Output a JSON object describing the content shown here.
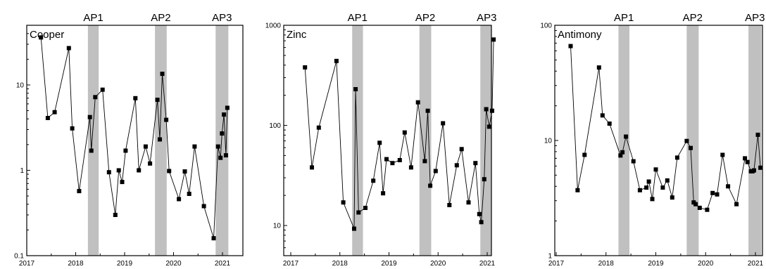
{
  "figure": {
    "colors": {
      "line": "#000000",
      "marker": "#000000",
      "band": "#c0c0c0",
      "axis": "#000000"
    },
    "x_ticks": [
      "2017",
      "2018",
      "2019",
      "2020",
      "2021"
    ]
  },
  "chart_data": [
    {
      "type": "line",
      "title": "Cooper",
      "yscale": "log",
      "ylim": [
        0.1,
        50
      ],
      "xlim": [
        2017.0,
        2021.45
      ],
      "y_ticks": [
        "0.1",
        "1",
        "10"
      ],
      "x_ticks": [
        "2017",
        "2018",
        "2019",
        "2020",
        "2021"
      ],
      "annotations": [
        {
          "label": "AP1",
          "start": 2018.25,
          "end": 2018.47
        },
        {
          "label": "AP2",
          "start": 2019.62,
          "end": 2019.86
        },
        {
          "label": "AP3",
          "start": 2020.86,
          "end": 2021.12
        }
      ],
      "series": [
        {
          "x": [
            2017.29,
            2017.43,
            2017.57,
            2017.86,
            2017.93,
            2018.07,
            2018.29,
            2018.32,
            2018.4,
            2018.55,
            2018.68,
            2018.81,
            2018.88,
            2018.95,
            2019.02,
            2019.22,
            2019.29,
            2019.43,
            2019.52,
            2019.67,
            2019.72,
            2019.77,
            2019.85,
            2019.91,
            2020.11,
            2020.23,
            2020.32,
            2020.43,
            2020.62,
            2020.82,
            2020.91,
            2020.96,
            2020.99,
            2021.03,
            2021.07,
            2021.1
          ],
          "y": [
            36,
            4.1,
            4.8,
            27,
            3.1,
            0.57,
            4.2,
            1.7,
            7.2,
            8.8,
            0.95,
            0.3,
            1.0,
            0.73,
            1.7,
            7.0,
            1.0,
            1.9,
            1.2,
            6.7,
            2.3,
            13.5,
            3.9,
            0.98,
            0.46,
            0.97,
            0.53,
            1.9,
            0.38,
            0.16,
            1.9,
            1.4,
            2.7,
            4.5,
            1.5,
            5.4
          ]
        }
      ]
    },
    {
      "type": "line",
      "title": "Zinc",
      "yscale": "log",
      "ylim": [
        5,
        1000
      ],
      "xlim": [
        2017.0,
        2021.45
      ],
      "y_ticks": [
        "10",
        "100",
        "1000"
      ],
      "x_ticks": [
        "2017",
        "2018",
        "2019",
        "2020",
        "2021"
      ],
      "annotations": [
        {
          "label": "AP1",
          "start": 2018.25,
          "end": 2018.47
        },
        {
          "label": "AP2",
          "start": 2019.62,
          "end": 2019.86
        },
        {
          "label": "AP3",
          "start": 2020.86,
          "end": 2021.12
        }
      ],
      "series": [
        {
          "x": [
            2017.29,
            2017.43,
            2017.57,
            2017.93,
            2018.07,
            2018.29,
            2018.32,
            2018.38,
            2018.52,
            2018.68,
            2018.81,
            2018.88,
            2018.95,
            2019.07,
            2019.22,
            2019.32,
            2019.45,
            2019.59,
            2019.73,
            2019.79,
            2019.84,
            2019.95,
            2020.1,
            2020.23,
            2020.38,
            2020.48,
            2020.62,
            2020.76,
            2020.84,
            2020.88,
            2020.94,
            2020.98,
            2021.04,
            2021.1,
            2021.13
          ],
          "y": [
            380,
            38,
            95,
            440,
            17,
            9.3,
            230,
            13.5,
            15,
            28,
            67,
            21,
            46,
            42,
            45,
            85,
            38,
            170,
            44,
            140,
            25,
            35,
            105,
            16,
            40,
            58,
            17,
            42,
            13,
            10.8,
            29,
            145,
            97,
            140,
            720
          ]
        }
      ]
    },
    {
      "type": "line",
      "title": "Antimony",
      "yscale": "log",
      "ylim": [
        1,
        100
      ],
      "xlim": [
        2017.0,
        2021.3
      ],
      "y_ticks": [
        "1",
        "10",
        "100"
      ],
      "x_ticks": [
        "2017",
        "2018",
        "2019",
        "2020",
        "2021"
      ],
      "annotations": [
        {
          "label": "AP1",
          "start": 2018.25,
          "end": 2018.47
        },
        {
          "label": "AP2",
          "start": 2019.62,
          "end": 2019.86
        },
        {
          "label": "AP3",
          "start": 2020.86,
          "end": 2021.12
        }
      ],
      "series": [
        {
          "x": [
            2017.29,
            2017.43,
            2017.57,
            2017.86,
            2017.93,
            2018.07,
            2018.29,
            2018.33,
            2018.4,
            2018.55,
            2018.68,
            2018.81,
            2018.86,
            2018.93,
            2019.0,
            2019.14,
            2019.23,
            2019.33,
            2019.43,
            2019.62,
            2019.7,
            2019.76,
            2019.8,
            2019.88,
            2020.03,
            2020.14,
            2020.23,
            2020.34,
            2020.45,
            2020.62,
            2020.79,
            2020.84,
            2020.91,
            2020.94,
            2020.97,
            2021.05,
            2021.1
          ],
          "y": [
            66,
            3.7,
            7.5,
            43,
            16.5,
            14,
            7.4,
            7.9,
            10.8,
            6.6,
            3.7,
            3.9,
            4.4,
            3.1,
            5.6,
            3.9,
            4.5,
            3.2,
            7.1,
            9.9,
            8.6,
            2.9,
            2.8,
            2.6,
            2.5,
            3.5,
            3.4,
            7.5,
            4.0,
            2.8,
            7.0,
            6.5,
            5.4,
            5.4,
            5.5,
            11.2,
            5.8
          ]
        }
      ]
    }
  ]
}
